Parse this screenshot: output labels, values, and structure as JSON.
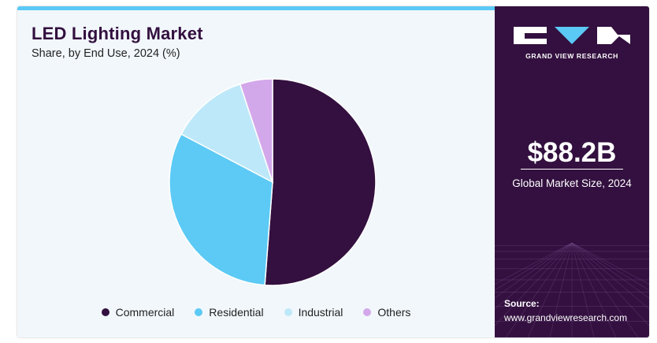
{
  "title": "LED Lighting Market",
  "subtitle": "Share, by End Use, 2024 (%)",
  "brand": {
    "name": "GRAND VIEW RESEARCH",
    "logo_icon": "gvr-logo-icon"
  },
  "market_size": {
    "value": "$88.2B",
    "caption": "Global Market Size, 2024"
  },
  "source": {
    "label": "Source:",
    "url": "www.grandviewresearch.com"
  },
  "colors": {
    "left_bg": "#f2f7fb",
    "right_bg": "#33103f",
    "accent": "#5bc9f5"
  },
  "chart_data": {
    "type": "pie",
    "start_angle_deg": 0,
    "direction": "clockwise",
    "legend_position": "bottom",
    "slices": [
      {
        "label": "Commercial",
        "value": 51.2,
        "color": "#33103f"
      },
      {
        "label": "Residential",
        "value": 31.5,
        "color": "#5ccaf5"
      },
      {
        "label": "Industrial",
        "value": 12.2,
        "color": "#bde8f9"
      },
      {
        "label": "Others",
        "value": 5.1,
        "color": "#d3a8ea"
      }
    ]
  }
}
